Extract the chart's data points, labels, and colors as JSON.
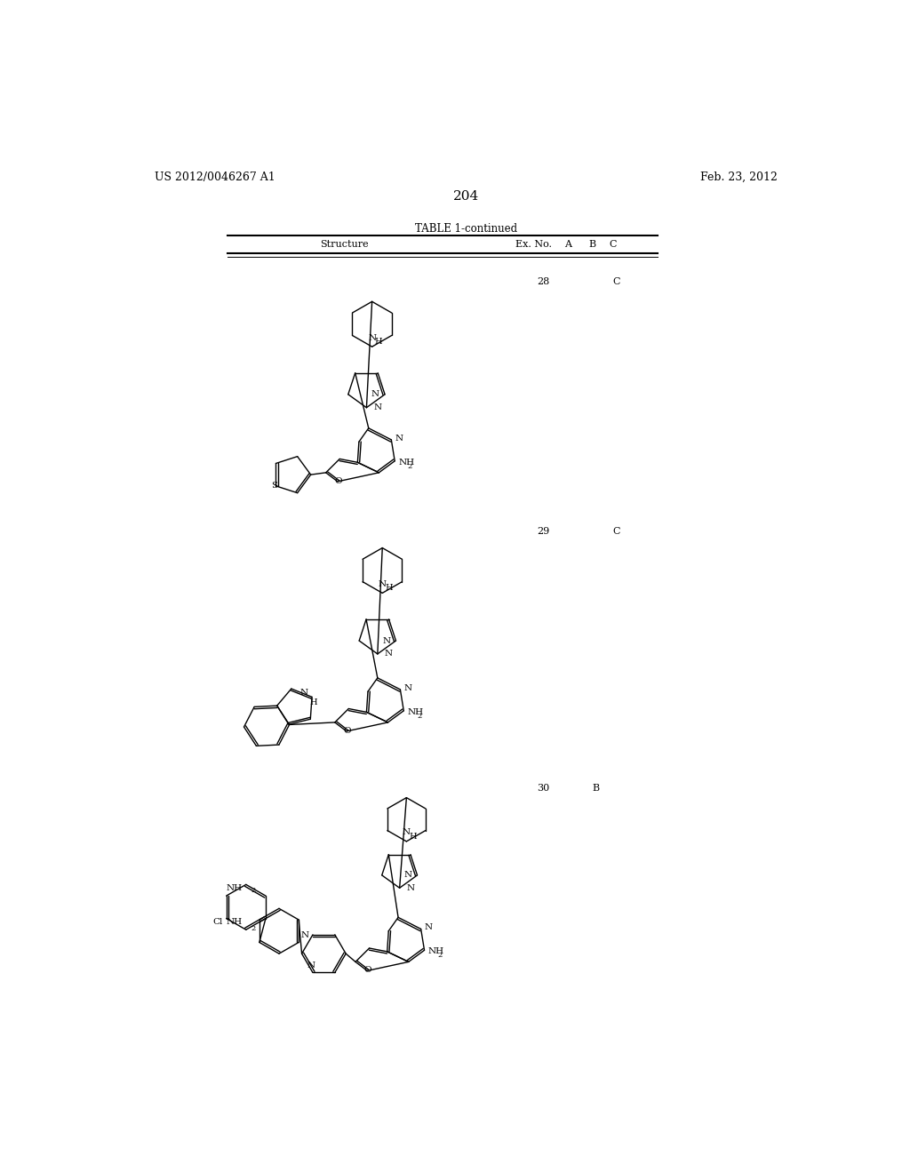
{
  "page_number": "204",
  "patent_left": "US 2012/0046267 A1",
  "patent_right": "Feb. 23, 2012",
  "table_title": "TABLE 1-continued",
  "col_structure": "Structure",
  "col_exno": "Ex. No.",
  "col_a": "A",
  "col_b": "B",
  "col_c": "C",
  "bg_color": "#ffffff",
  "text_color": "#000000"
}
